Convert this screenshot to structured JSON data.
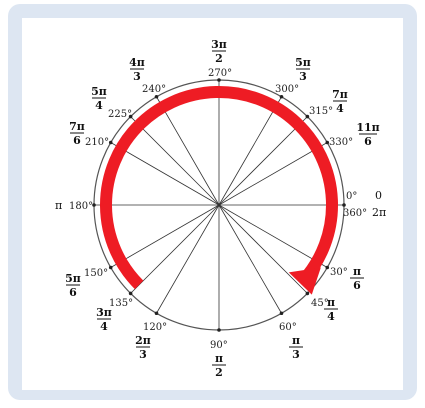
{
  "degree_labels": [
    {
      "id": "deg-0",
      "text": "0°"
    },
    {
      "id": "deg-30",
      "text": "30°"
    },
    {
      "id": "deg-45",
      "text": "45°"
    },
    {
      "id": "deg-60",
      "text": "60°"
    },
    {
      "id": "deg-90",
      "text": "90°"
    },
    {
      "id": "deg-120",
      "text": "120°"
    },
    {
      "id": "deg-135",
      "text": "135°"
    },
    {
      "id": "deg-150",
      "text": "150°"
    },
    {
      "id": "deg-180",
      "text": "180°"
    },
    {
      "id": "deg-210",
      "text": "210°"
    },
    {
      "id": "deg-225",
      "text": "225°"
    },
    {
      "id": "deg-240",
      "text": "240°"
    },
    {
      "id": "deg-270",
      "text": "270°"
    },
    {
      "id": "deg-300",
      "text": "300°"
    },
    {
      "id": "deg-315",
      "text": "315°"
    },
    {
      "id": "deg-330",
      "text": "330°"
    },
    {
      "id": "deg-360",
      "text": "360°"
    }
  ],
  "radian_labels": [
    {
      "id": "rad-0",
      "text": "0"
    },
    {
      "id": "rad-2pi",
      "text": "2π"
    },
    {
      "id": "rad-pi",
      "text": "π"
    },
    {
      "id": "rad-pi6",
      "num": "π",
      "den": "6"
    },
    {
      "id": "rad-pi4",
      "num": "π",
      "den": "4"
    },
    {
      "id": "rad-pi3",
      "num": "π",
      "den": "3"
    },
    {
      "id": "rad-pi2",
      "num": "π",
      "den": "2"
    },
    {
      "id": "rad-2pi3",
      "num": "2π",
      "den": "3"
    },
    {
      "id": "rad-3pi4",
      "num": "3π",
      "den": "4"
    },
    {
      "id": "rad-5pi6",
      "num": "5π",
      "den": "6"
    },
    {
      "id": "rad-7pi6",
      "num": "7π",
      "den": "6"
    },
    {
      "id": "rad-5pi4",
      "num": "5π",
      "den": "4"
    },
    {
      "id": "rad-4pi3",
      "num": "4π",
      "den": "3"
    },
    {
      "id": "rad-3pi2",
      "num": "3π",
      "den": "2"
    },
    {
      "id": "rad-5pi3",
      "num": "5π",
      "den": "3"
    },
    {
      "id": "rad-7pi4",
      "num": "7π",
      "den": "4"
    },
    {
      "id": "rad-11pi6",
      "num": "11π",
      "den": "6"
    }
  ],
  "spokes_deg": [
    0,
    30,
    45,
    60,
    90,
    120,
    135,
    150,
    180,
    210,
    225,
    240,
    270,
    300,
    315,
    330
  ],
  "arrow": {
    "from_deg": 135,
    "to_deg": 30,
    "color": "#ee1c24"
  },
  "colors": {
    "frame": "#dde6f2",
    "circle": "#555555",
    "spoke": "#333333"
  }
}
